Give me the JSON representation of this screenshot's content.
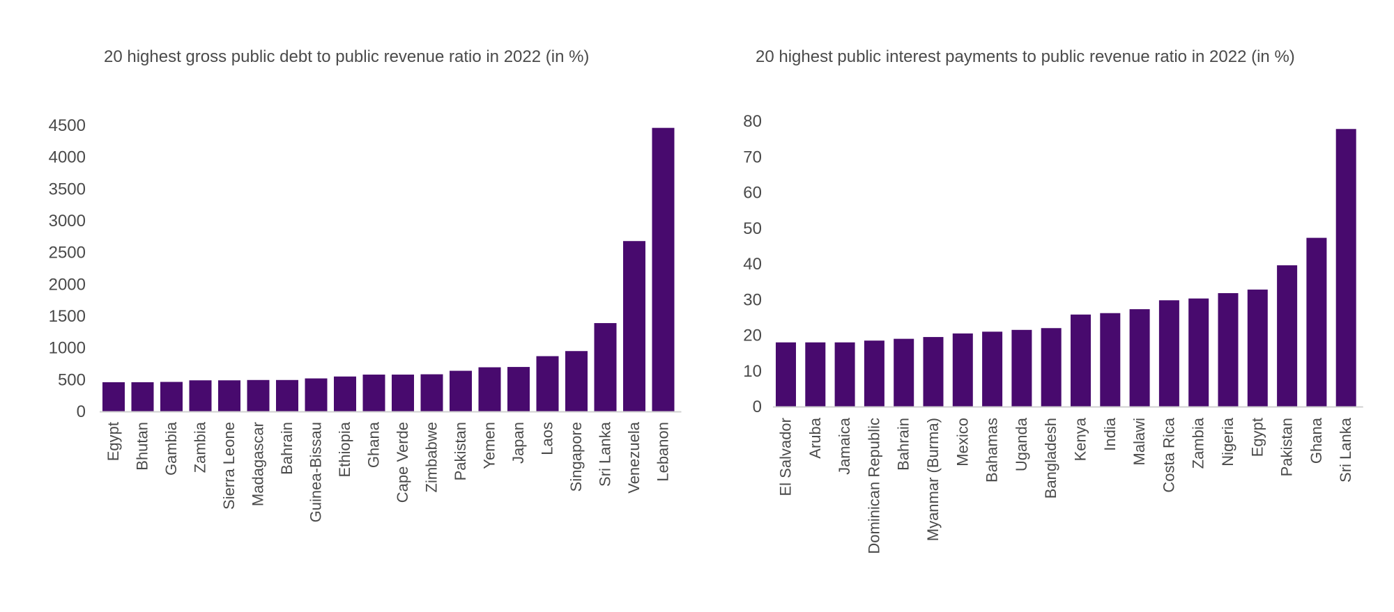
{
  "colors": {
    "bar": "#480A6E",
    "text": "#4a4a4a",
    "axis": "#d0d0d0"
  },
  "chart_data": [
    {
      "type": "bar",
      "title": "20 highest gross public debt to public revenue ratio in 2022 (in %)",
      "xlabel": "",
      "ylabel": "",
      "ylim": [
        0,
        4500
      ],
      "yticks": [
        0,
        500,
        1000,
        1500,
        2000,
        2500,
        3000,
        3500,
        4000,
        4500
      ],
      "grid": false,
      "categories": [
        "Egypt",
        "Bhutan",
        "Gambia",
        "Zambia",
        "Sierra Leone",
        "Madagascar",
        "Bahrain",
        "Guinea-Bissau",
        "Ethiopia",
        "Ghana",
        "Cape Verde",
        "Zimbabwe",
        "Pakistan",
        "Yemen",
        "Japan",
        "Laos",
        "Singapore",
        "Sri Lanka",
        "Venezuela",
        "Lebanon"
      ],
      "values": [
        460,
        460,
        465,
        490,
        490,
        495,
        495,
        520,
        550,
        580,
        580,
        585,
        640,
        695,
        700,
        870,
        950,
        1390,
        2680,
        4460
      ]
    },
    {
      "type": "bar",
      "title": "20 highest public interest payments to public revenue ratio in 2022 (in %)",
      "xlabel": "",
      "ylabel": "",
      "ylim": [
        0,
        80
      ],
      "yticks": [
        0,
        10,
        20,
        30,
        40,
        50,
        60,
        70,
        80
      ],
      "grid": false,
      "categories": [
        "El Salvador",
        "Aruba",
        "Jamaica",
        "Dominican Republic",
        "Bahrain",
        "Myanmar (Burma)",
        "Mexico",
        "Bahamas",
        "Uganda",
        "Bangladesh",
        "Kenya",
        "India",
        "Malawi",
        "Costa Rica",
        "Zambia",
        "Nigeria",
        "Egypt",
        "Pakistan",
        "Ghana",
        "Sri Lanka"
      ],
      "values": [
        18,
        18,
        18,
        18.5,
        19,
        19.5,
        20.5,
        21,
        21.5,
        22,
        25.8,
        26.2,
        27.3,
        29.8,
        30.3,
        31.8,
        32.8,
        39.6,
        47.3,
        77.8
      ]
    }
  ]
}
